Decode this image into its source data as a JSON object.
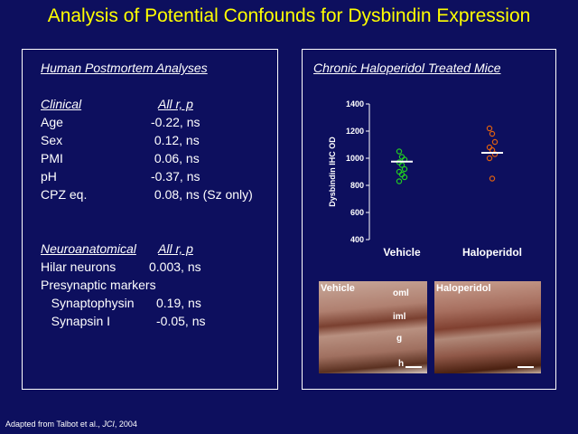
{
  "title": "Analysis of Potential Confounds for Dysbindin Expression",
  "left_panel": {
    "heading": "Human  Postmortem Analyses",
    "clinical": {
      "header_label": "Clinical",
      "header_value": "All r, p",
      "rows": [
        {
          "label": "Age",
          "value": "-0.22, ns"
        },
        {
          "label": "Sex",
          "value": " 0.12, ns"
        },
        {
          "label": "PMI",
          "value": " 0.06, ns"
        },
        {
          "label": "pH",
          "value": "-0.37, ns"
        },
        {
          "label": "CPZ eq.",
          "value": " 0.08, ns (Sz only)"
        }
      ]
    },
    "neuro": {
      "header_label": "Neuroanatomical",
      "header_value": "All r, p",
      "rows": [
        {
          "label": "Hilar neurons",
          "value": "0.003, ns"
        },
        {
          "label": "Presynaptic markers",
          "value": ""
        },
        {
          "label": "   Synaptophysin",
          "value": "0.19, ns"
        },
        {
          "label": "   Synapsin I",
          "value": "-0.05, ns"
        }
      ]
    }
  },
  "right_panel": {
    "heading": "Chronic Haloperidol Treated Mice",
    "photos": {
      "left_label": "Vehicle",
      "right_label": "Haloperidol",
      "layers": [
        "oml",
        "iml",
        "g",
        "h"
      ]
    }
  },
  "chart_data": {
    "type": "scatter",
    "ylabel": "Dysbindin IHC OD",
    "ylim": [
      400,
      1400
    ],
    "yticks": [
      "1400",
      "1200",
      "1000",
      "800",
      "600",
      "400"
    ],
    "categories": [
      "Vehicle",
      "Haloperidol"
    ],
    "series": [
      {
        "values": [
          1050,
          1010,
          990,
          970,
          950,
          920,
          900,
          880,
          860,
          830
        ]
      },
      {
        "values": [
          1220,
          1180,
          1120,
          1080,
          1060,
          1030,
          1000,
          850
        ]
      }
    ],
    "means": [
      975,
      1040
    ],
    "colors": {
      "vehicle": "#22cc22",
      "haloperidol": "#e06010",
      "mean": "#ffffff"
    }
  },
  "footer": {
    "text": "Adapted from Talbot et al., ",
    "journal": "JCI",
    "year": ", 2004"
  }
}
